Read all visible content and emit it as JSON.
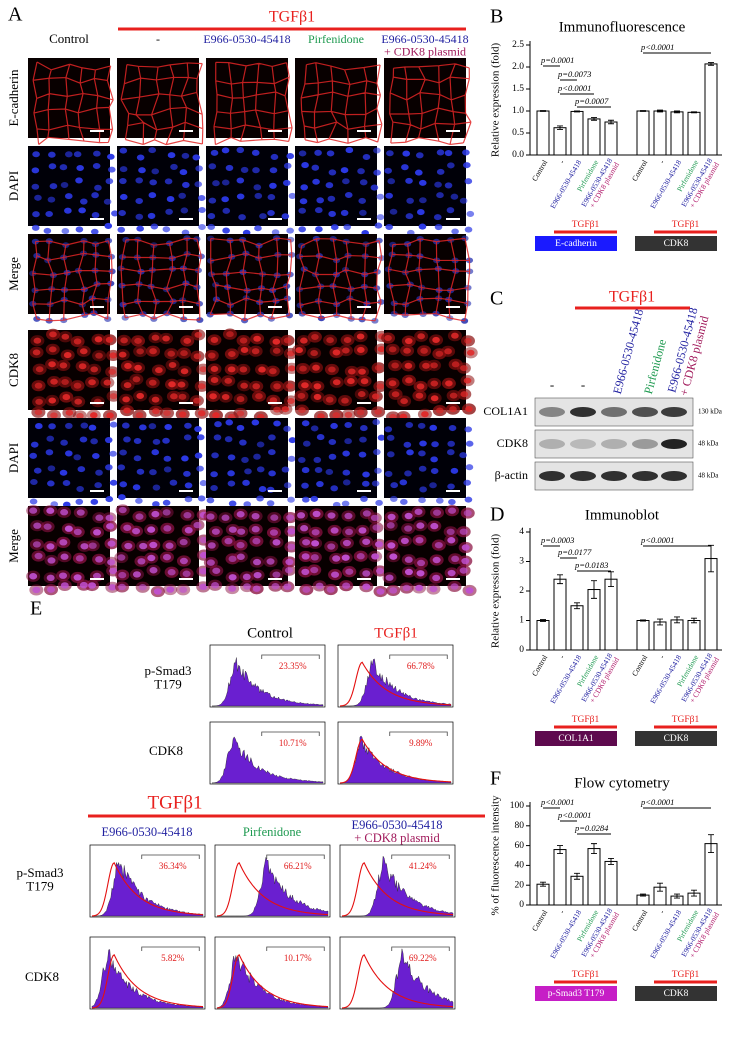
{
  "panel_labels": {
    "a": "A",
    "b": "B",
    "c": "C",
    "d": "D",
    "e": "E",
    "f": "F"
  },
  "panel_a": {
    "treatment": "TGFβ1",
    "columns": [
      "Control",
      "-",
      "E966-0530-45418",
      "Pirfenidone",
      [
        "E966-0530-45418",
        "+ CDK8 plasmid"
      ]
    ],
    "rows": [
      "E-cadherin",
      "DAPI",
      "Merge",
      "CDK8",
      "DAPI",
      "Merge"
    ]
  },
  "panel_c": {
    "treatment": "TGFβ1",
    "lanes": [
      "-",
      "-",
      "E966-0530-45418",
      "Pirfenidone",
      [
        "E966-0530-45418",
        "+ CDK8 plasmid"
      ]
    ],
    "blots": [
      {
        "name": "COL1A1",
        "size": "130 kDa"
      },
      {
        "name": "CDK8",
        "size": "48 kDa"
      },
      {
        "name": "β-actin",
        "size": "48 kDa"
      }
    ]
  },
  "panel_e": {
    "top_columns": [
      "Control",
      "TGFβ1"
    ],
    "rows": [
      [
        "p-Smad3",
        "T179"
      ],
      "CDK8"
    ],
    "top_percentages": [
      [
        "23.35%",
        "66.78%"
      ],
      [
        "10.71%",
        "9.89%"
      ]
    ],
    "treatment": "TGFβ1",
    "bottom_columns": [
      "E966-0530-45418",
      "Pirfenidone",
      [
        "E966-0530-45418",
        "+ CDK8 plasmid"
      ]
    ],
    "bottom_percentages": [
      [
        "36.34%",
        "66.21%",
        "41.24%"
      ],
      [
        "5.82%",
        "10.17%",
        "69.22%"
      ]
    ]
  },
  "chart_data": [
    {
      "type": "bar",
      "title": "Immunofluorescence",
      "y_label": "Relative expression (fold)",
      "categories": [
        "Control",
        "-",
        "E966-0530-45418",
        "Pirfenidone",
        [
          "E966-0530-45418",
          "+ CDK8 plasmid"
        ]
      ],
      "category_colors": [
        "#000000",
        "#000000",
        "#1f1fa0",
        "#1e9a50",
        [
          "#1f1fa0",
          "#b0186a"
        ]
      ],
      "treatment": "TGFβ1",
      "treatment_color": "#e8201e",
      "bar_fill": "#ffffff",
      "bar_stroke": "#000000",
      "series": [
        {
          "name": "E-cadherin",
          "color": "#1a1aff",
          "values": [
            1.0,
            0.62,
            0.99,
            0.82,
            0.75
          ],
          "errors": [
            0.01,
            0.04,
            0.01,
            0.03,
            0.04
          ]
        },
        {
          "name": "CDK8",
          "color": "#333333",
          "values": [
            1.0,
            1.0,
            0.98,
            0.97,
            2.07
          ],
          "errors": [
            0.01,
            0.02,
            0.02,
            0.01,
            0.03
          ]
        }
      ],
      "ylim": [
        0,
        2.5
      ],
      "yticks": [
        {
          "value": 0,
          "label": "0.0"
        },
        0.5,
        {
          "value": 1,
          "label": "1.0"
        },
        1.5,
        {
          "value": 2,
          "label": "2.0"
        },
        2.5
      ],
      "annotations": [
        "p=0.0001",
        "p=0.0073",
        "p<0.0001",
        "p=0.0007",
        "p<0.0001"
      ]
    },
    {
      "type": "bar",
      "title": "Immunoblot",
      "y_label": "Relative expression (fold)",
      "categories": [
        "Control",
        "-",
        "E966-0530-45418",
        "Pirfenidone",
        [
          "E966-0530-45418",
          "+ CDK8 plasmid"
        ]
      ],
      "category_colors": [
        "#000000",
        "#000000",
        "#1f1fa0",
        "#1e9a50",
        [
          "#1f1fa0",
          "#b0186a"
        ]
      ],
      "treatment": "TGFβ1",
      "treatment_color": "#e8201e",
      "bar_fill": "#ffffff",
      "bar_stroke": "#000000",
      "series": [
        {
          "name": "COL1A1",
          "color": "#5e0a4e",
          "values": [
            1.0,
            2.4,
            1.5,
            2.05,
            2.4
          ],
          "errors": [
            0.03,
            0.15,
            0.1,
            0.3,
            0.25
          ]
        },
        {
          "name": "CDK8",
          "color": "#333333",
          "values": [
            1.0,
            0.95,
            1.02,
            1.0,
            3.1
          ],
          "errors": [
            0.02,
            0.1,
            0.1,
            0.08,
            0.45
          ]
        }
      ],
      "ylim": [
        0,
        4
      ],
      "yticks": [
        0,
        1,
        2,
        3,
        4
      ],
      "annotations": [
        "p=0.0003",
        "p=0.0177",
        "p=0.0183",
        "p<0.0001"
      ]
    },
    {
      "type": "bar",
      "title": "Flow cytometry",
      "y_label": "% of fluorescence intensity",
      "categories": [
        "Control",
        "-",
        "E966-0530-45418",
        "Pirfenidone",
        [
          "E966-0530-45418",
          "+ CDK8 plasmid"
        ]
      ],
      "category_colors": [
        "#000000",
        "#000000",
        "#1f1fa0",
        "#1e9a50",
        [
          "#1f1fa0",
          "#b0186a"
        ]
      ],
      "treatment": "TGFβ1",
      "treatment_color": "#e8201e",
      "bar_fill": "#ffffff",
      "bar_stroke": "#000000",
      "series": [
        {
          "name": "p-Smad3 T179",
          "color": "#c61ec6",
          "values": [
            21,
            56,
            29,
            57,
            44
          ],
          "errors": [
            2,
            4,
            3,
            5,
            3
          ]
        },
        {
          "name": "CDK8",
          "color": "#333333",
          "values": [
            10,
            18,
            9,
            12,
            62
          ],
          "errors": [
            1,
            4,
            2,
            3,
            9
          ]
        }
      ],
      "ylim": [
        0,
        100
      ],
      "yticks": [
        0,
        20,
        40,
        60,
        80,
        100
      ],
      "annotations": [
        "p<0.0001",
        "p<0.0001",
        "p=0.0284",
        "p<0.0001"
      ]
    }
  ]
}
